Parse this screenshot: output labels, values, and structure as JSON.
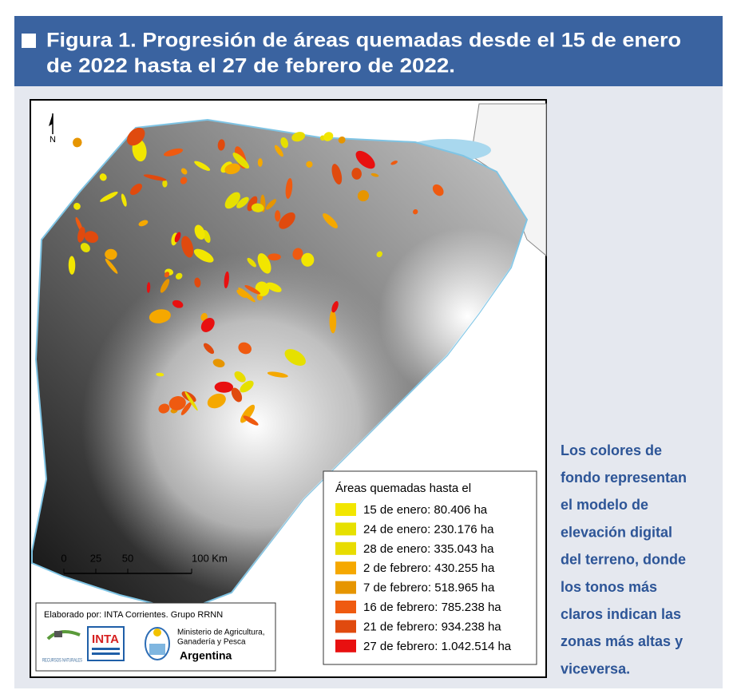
{
  "header": {
    "title_lines": [
      "Figura 1. Progresión de áreas quemadas desde el 15 de enero",
      "de 2022 hasta el 27 de febrero de 2022."
    ]
  },
  "map": {
    "north": "N",
    "legend": {
      "title": "Áreas quemadas hasta el",
      "items": [
        {
          "label": "15 de enero: 80.406 ha",
          "color": "#f2e600"
        },
        {
          "label": "24 de enero: 230.176 ha",
          "color": "#e6e000"
        },
        {
          "label": "28 de enero: 335.043 ha",
          "color": "#e8dc00"
        },
        {
          "label": "2 de febrero: 430.255 ha",
          "color": "#f5a800"
        },
        {
          "label": "7 de febrero: 518.965 ha",
          "color": "#e69500"
        },
        {
          "label": "16 de febrero: 785.238 ha",
          "color": "#ef5a10"
        },
        {
          "label": "21 de febrero: 934.238 ha",
          "color": "#e04a0e"
        },
        {
          "label": "27 de febrero: 1.042.514 ha",
          "color": "#e81010"
        }
      ]
    },
    "scale": [
      "0",
      "25",
      "50",
      "100 Km"
    ],
    "credits": {
      "author": "Elaborado por: INTA Corrientes. Grupo RRNN",
      "logo1": "RECURSOS NATURALES",
      "logo2": "INTA",
      "ministry_lines": [
        "Ministerio de Agricultura,",
        "Ganadería y Pesca"
      ],
      "country": "Argentina"
    }
  },
  "side_note_lines": [
    "Los colores de",
    "fondo representan",
    "el modelo de",
    "elevación digital",
    "del terreno, donde",
    "los tonos más",
    "claros indican las",
    "zonas más altas y",
    "viceversa."
  ]
}
